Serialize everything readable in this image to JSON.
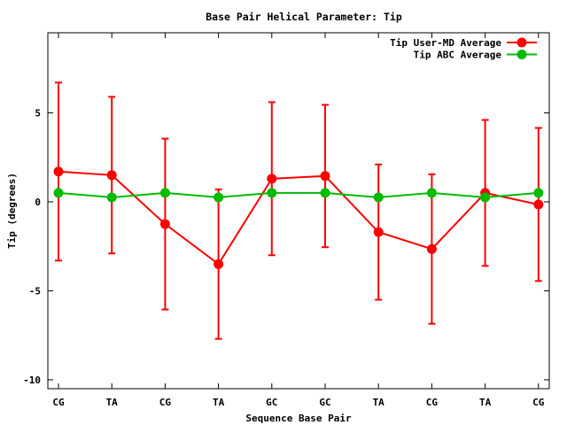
{
  "chart_data": {
    "type": "line",
    "title": "Base Pair Helical Parameter: Tip",
    "xlabel": "Sequence Base Pair",
    "ylabel": "Tip (degrees)",
    "categories": [
      "CG",
      "TA",
      "CG",
      "TA",
      "GC",
      "GC",
      "TA",
      "CG",
      "TA",
      "CG"
    ],
    "ylim": [
      -10.5,
      9.5
    ],
    "yticks": [
      -10,
      -5,
      0,
      5
    ],
    "ytick_labels": [
      "-10",
      "-5",
      "0",
      "5"
    ],
    "grid": false,
    "legend_position": "top-right",
    "series": [
      {
        "name": "Tip User-MD Average",
        "color": "#ff0000",
        "values": [
          1.7,
          1.5,
          -1.25,
          -3.5,
          1.3,
          1.45,
          -1.7,
          -2.65,
          0.5,
          -0.15
        ],
        "error": [
          5.0,
          4.4,
          4.8,
          4.2,
          4.3,
          4.0,
          3.8,
          4.2,
          4.1,
          4.3
        ]
      },
      {
        "name": "Tip ABC Average",
        "color": "#00bb00",
        "values": [
          0.5,
          0.25,
          0.5,
          0.25,
          0.5,
          0.5,
          0.25,
          0.5,
          0.25,
          0.5
        ]
      }
    ]
  }
}
